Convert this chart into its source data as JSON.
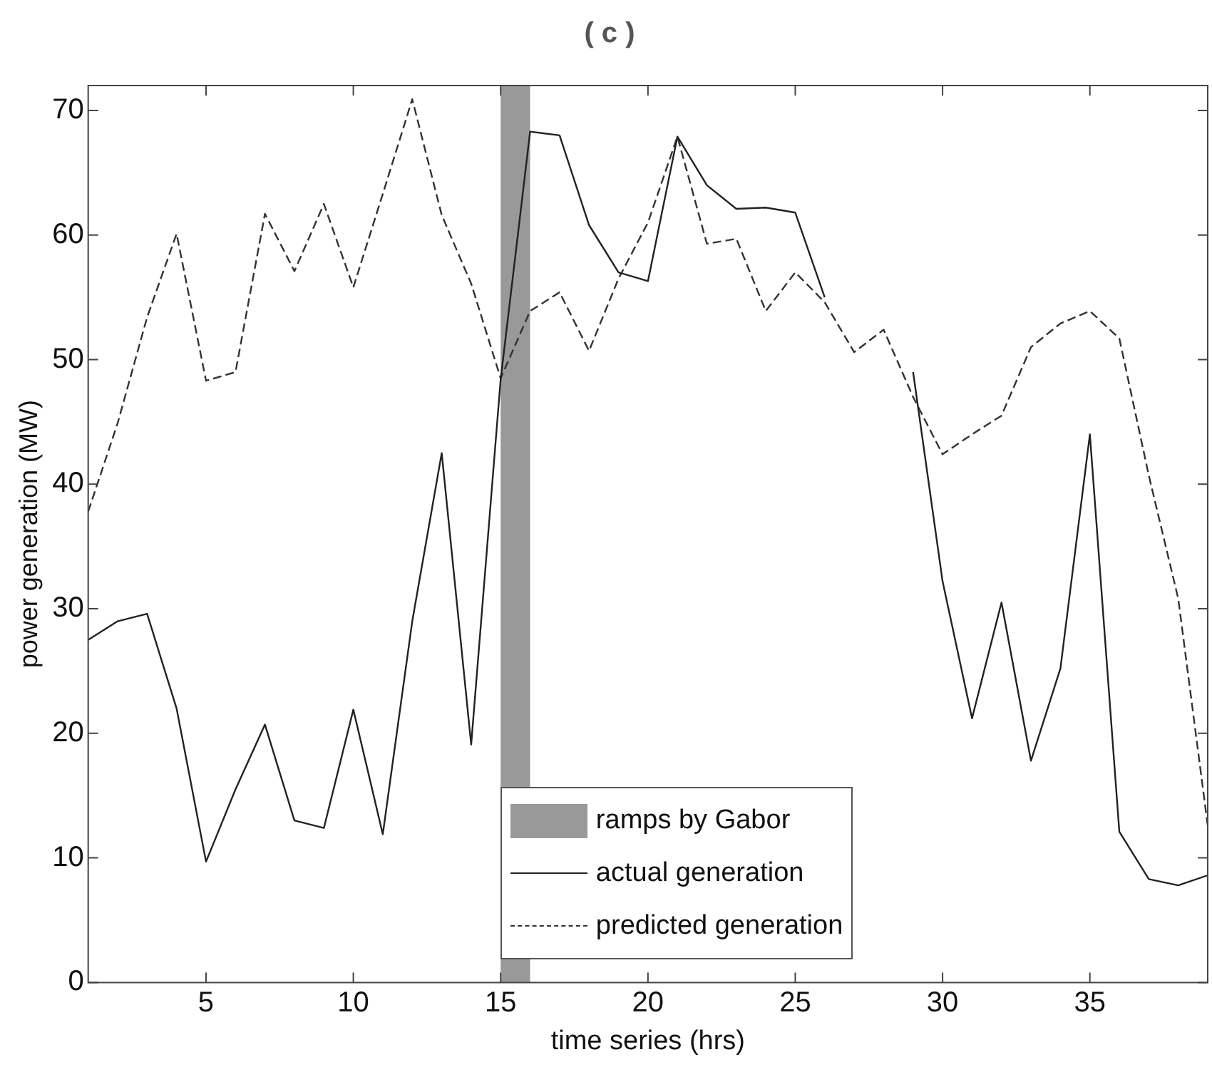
{
  "chart_data": {
    "type": "line",
    "title": "( c )",
    "xlabel": "time series (hrs)",
    "ylabel": "power generation (MW)",
    "x": [
      1,
      2,
      3,
      4,
      5,
      6,
      7,
      8,
      9,
      10,
      11,
      12,
      13,
      14,
      15,
      16,
      17,
      18,
      19,
      20,
      21,
      22,
      23,
      24,
      25,
      26,
      27,
      28,
      29,
      30,
      31,
      32,
      33,
      34,
      35,
      36,
      37,
      38,
      39
    ],
    "series": [
      {
        "name": "actual generation",
        "color": "#222222",
        "line_style": "solid",
        "values": [
          27.5,
          29,
          29.6,
          22,
          9.7,
          15.5,
          20.7,
          13,
          12.4,
          21.9,
          11.9,
          29,
          42.5,
          19.1,
          48.4,
          68.3,
          68,
          60.8,
          57,
          56.3,
          67.9,
          64,
          62.1,
          62.2,
          61.8,
          55,
          null,
          null,
          49,
          32.2,
          21.2,
          30.5,
          17.8,
          25.2,
          44,
          12.1,
          8.3,
          7.8,
          8.6
        ]
      },
      {
        "name": "predicted generation",
        "color": "#333333",
        "line_style": "dashed",
        "values": [
          37.8,
          44.9,
          53.4,
          60.1,
          48.3,
          49,
          61.7,
          57.1,
          62.5,
          55.8,
          63.3,
          70.9,
          61.6,
          56.1,
          48.5,
          53.9,
          55.4,
          50.7,
          56.5,
          61,
          67.9,
          59.3,
          59.7,
          53.9,
          57,
          54.6,
          50.6,
          52.4,
          47,
          42.4,
          44,
          45.5,
          51,
          52.9,
          53.9,
          51.7,
          40.7,
          30.8,
          12.6
        ]
      }
    ],
    "bands": [
      {
        "axis": "x",
        "from": 15,
        "to": 16,
        "label": "ramps by Gabor",
        "color": "#999999"
      }
    ],
    "xlim": [
      1,
      39
    ],
    "xticks": [
      5,
      10,
      15,
      20,
      25,
      30,
      35
    ],
    "ylim": [
      0,
      72
    ],
    "yticks": [
      0,
      10,
      20,
      30,
      40,
      50,
      60,
      70
    ],
    "grid": false,
    "legend": "bottom",
    "marker": "none"
  }
}
